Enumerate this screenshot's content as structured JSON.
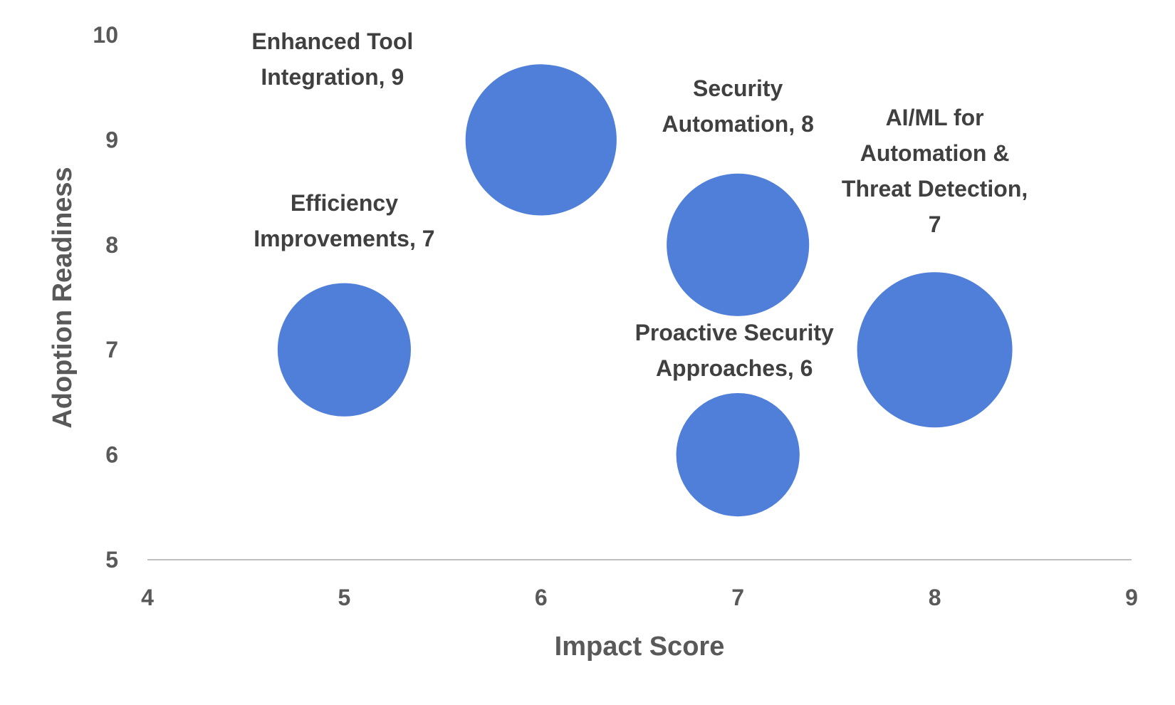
{
  "chart_data": {
    "type": "bubble",
    "title": "",
    "xlabel": "Impact Score",
    "ylabel": "Adoption Readiness",
    "xlim": [
      4,
      9
    ],
    "ylim": [
      5,
      10
    ],
    "x_ticks": [
      4,
      5,
      6,
      7,
      8,
      9
    ],
    "y_ticks": [
      5,
      6,
      7,
      8,
      9,
      10
    ],
    "grid": false,
    "legend": "none",
    "bubble_color": "#4F7FD9",
    "points": [
      {
        "label": "Efficiency Improvements, 7",
        "x": 5,
        "y": 7,
        "size": 7
      },
      {
        "label": "Enhanced Tool Integration, 9",
        "x": 6,
        "y": 9,
        "size": 9
      },
      {
        "label": "Security Automation, 8",
        "x": 7,
        "y": 8,
        "size": 8
      },
      {
        "label": "Proactive Security Approaches, 6",
        "x": 7,
        "y": 6,
        "size": 6
      },
      {
        "label": "AI/ML for Automation & Threat Detection, 7",
        "x": 8,
        "y": 7,
        "size": 9.5
      }
    ]
  }
}
